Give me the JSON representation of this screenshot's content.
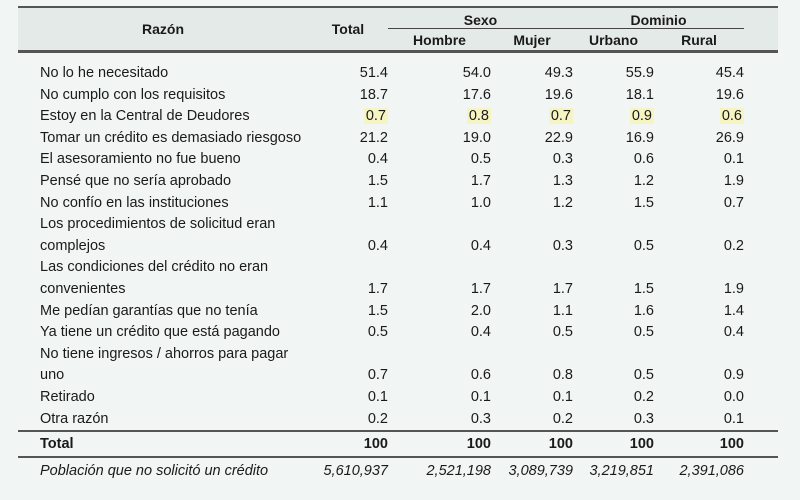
{
  "table": {
    "headers": {
      "reason": "Razón",
      "total": "Total",
      "sex_group": "Sexo",
      "sex": [
        "Hombre",
        "Mujer"
      ],
      "domain_group": "Dominio",
      "domain": [
        "Urbano",
        "Rural"
      ]
    },
    "highlight_color": "#f7f4c4",
    "rows": [
      {
        "label": "No lo he necesitado",
        "values": [
          "51.4",
          "54.0",
          "49.3",
          "55.9",
          "45.4"
        ]
      },
      {
        "label": "No cumplo con los requisitos",
        "values": [
          "18.7",
          "17.6",
          "19.6",
          "18.1",
          "19.6"
        ]
      },
      {
        "label": "Estoy en la Central de Deudores",
        "values": [
          "0.7",
          "0.8",
          "0.7",
          "0.9",
          "0.6"
        ],
        "highlighted": true
      },
      {
        "label": "Tomar un crédito es demasiado riesgoso",
        "values": [
          "21.2",
          "19.0",
          "22.9",
          "16.9",
          "26.9"
        ]
      },
      {
        "label": "El asesoramiento no fue bueno",
        "values": [
          "0.4",
          "0.5",
          "0.3",
          "0.6",
          "0.1"
        ]
      },
      {
        "label": "Pensé que no sería aprobado",
        "values": [
          "1.5",
          "1.7",
          "1.3",
          "1.2",
          "1.9"
        ]
      },
      {
        "label": "No confío en las instituciones",
        "values": [
          "1.1",
          "1.0",
          "1.2",
          "1.5",
          "0.7"
        ]
      },
      {
        "label": "Los procedimientos de solicitud eran complejos",
        "values": [
          "0.4",
          "0.4",
          "0.3",
          "0.5",
          "0.2"
        ]
      },
      {
        "label": "Las condiciones del crédito no eran convenientes",
        "values": [
          "1.7",
          "1.7",
          "1.7",
          "1.5",
          "1.9"
        ]
      },
      {
        "label": "Me pedían garantías que no tenía",
        "values": [
          "1.5",
          "2.0",
          "1.1",
          "1.6",
          "1.4"
        ]
      },
      {
        "label": "Ya tiene un crédito que está pagando",
        "values": [
          "0.5",
          "0.4",
          "0.5",
          "0.5",
          "0.4"
        ]
      },
      {
        "label": "No tiene ingresos / ahorros para pagar uno",
        "values": [
          "0.7",
          "0.6",
          "0.8",
          "0.5",
          "0.9"
        ]
      },
      {
        "label": "Retirado",
        "values": [
          "0.1",
          "0.1",
          "0.1",
          "0.2",
          "0.0"
        ]
      },
      {
        "label": "Otra razón",
        "values": [
          "0.2",
          "0.3",
          "0.2",
          "0.3",
          "0.1"
        ]
      }
    ],
    "total": {
      "label": "Total",
      "values": [
        "100",
        "100",
        "100",
        "100",
        "100"
      ]
    },
    "population": {
      "label": "Población que no solicitó un crédito",
      "values": [
        "5,610,937",
        "2,521,198",
        "3,089,739",
        "3,219,851",
        "2,391,086"
      ]
    }
  }
}
